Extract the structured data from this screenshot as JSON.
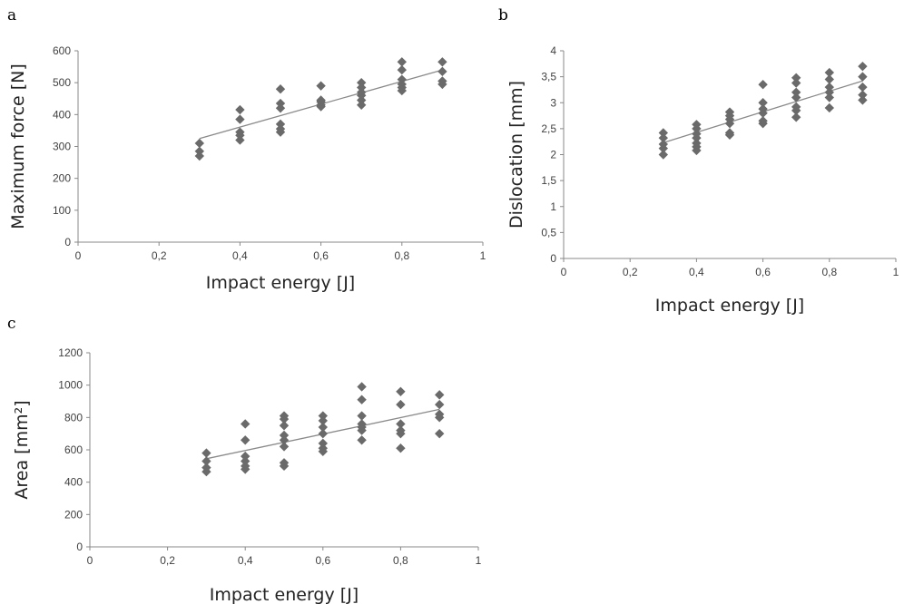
{
  "panels": [
    {
      "label": "a"
    },
    {
      "label": "b"
    },
    {
      "label": "c"
    }
  ],
  "chart_data": [
    {
      "type": "scatter",
      "panel": "a",
      "title": "",
      "xlabel": "Impact energy [J]",
      "ylabel": "Maximum force [N]",
      "xlim": [
        0,
        1
      ],
      "ylim": [
        0,
        600
      ],
      "xticks": [
        "0",
        "0,2",
        "0,4",
        "0,6",
        "0,8",
        "1"
      ],
      "yticks": [
        "0",
        "100",
        "200",
        "300",
        "400",
        "500",
        "600"
      ],
      "grid": false,
      "points": {
        "x": [
          0.3,
          0.3,
          0.3,
          0.4,
          0.4,
          0.4,
          0.4,
          0.4,
          0.5,
          0.5,
          0.5,
          0.5,
          0.5,
          0.5,
          0.6,
          0.6,
          0.6,
          0.6,
          0.6,
          0.7,
          0.7,
          0.7,
          0.7,
          0.7,
          0.7,
          0.8,
          0.8,
          0.8,
          0.8,
          0.8,
          0.8,
          0.9,
          0.9,
          0.9,
          0.9
        ],
        "y": [
          310,
          285,
          270,
          415,
          385,
          345,
          335,
          320,
          480,
          435,
          420,
          370,
          355,
          345,
          490,
          445,
          440,
          430,
          425,
          500,
          485,
          470,
          460,
          445,
          430,
          565,
          540,
          510,
          495,
          485,
          475,
          565,
          535,
          505,
          495
        ]
      },
      "trendline": {
        "x": [
          0.3,
          0.9
        ],
        "y": [
          325,
          540
        ]
      }
    },
    {
      "type": "scatter",
      "panel": "b",
      "title": "",
      "xlabel": "Impact energy [J]",
      "ylabel": "Dislocation [mm]",
      "xlim": [
        0,
        1
      ],
      "ylim": [
        0,
        4
      ],
      "xticks": [
        "0",
        "0,2",
        "0,4",
        "0,6",
        "0,8",
        "1"
      ],
      "yticks": [
        "0",
        "0,5",
        "1",
        "1,5",
        "2",
        "2,5",
        "3",
        "3,5",
        "4"
      ],
      "grid": false,
      "points": {
        "x": [
          0.3,
          0.3,
          0.3,
          0.3,
          0.3,
          0.4,
          0.4,
          0.4,
          0.4,
          0.4,
          0.4,
          0.4,
          0.5,
          0.5,
          0.5,
          0.5,
          0.5,
          0.5,
          0.6,
          0.6,
          0.6,
          0.6,
          0.6,
          0.6,
          0.7,
          0.7,
          0.7,
          0.7,
          0.7,
          0.7,
          0.7,
          0.8,
          0.8,
          0.8,
          0.8,
          0.8,
          0.8,
          0.9,
          0.9,
          0.9,
          0.9,
          0.9
        ],
        "y": [
          2.42,
          2.32,
          2.2,
          2.12,
          2.0,
          2.58,
          2.5,
          2.4,
          2.32,
          2.22,
          2.15,
          2.08,
          2.82,
          2.75,
          2.68,
          2.6,
          2.42,
          2.38,
          3.35,
          3.0,
          2.88,
          2.8,
          2.65,
          2.6,
          3.48,
          3.38,
          3.2,
          3.1,
          2.92,
          2.85,
          2.72,
          3.58,
          3.45,
          3.3,
          3.2,
          3.1,
          2.9,
          3.7,
          3.5,
          3.3,
          3.15,
          3.05
        ]
      },
      "trendline": {
        "x": [
          0.3,
          0.9
        ],
        "y": [
          2.23,
          3.42
        ]
      }
    },
    {
      "type": "scatter",
      "panel": "c",
      "title": "",
      "xlabel": "Impact energy [J]",
      "ylabel": "Area [mm²]",
      "xlim": [
        0,
        1
      ],
      "ylim": [
        0,
        1200
      ],
      "xticks": [
        "0",
        "0,2",
        "0,4",
        "0,6",
        "0,8",
        "1"
      ],
      "yticks": [
        "0",
        "200",
        "400",
        "600",
        "800",
        "1000",
        "1200"
      ],
      "grid": false,
      "points": {
        "x": [
          0.3,
          0.3,
          0.3,
          0.3,
          0.4,
          0.4,
          0.4,
          0.4,
          0.4,
          0.4,
          0.5,
          0.5,
          0.5,
          0.5,
          0.5,
          0.5,
          0.5,
          0.5,
          0.6,
          0.6,
          0.6,
          0.6,
          0.6,
          0.6,
          0.6,
          0.7,
          0.7,
          0.7,
          0.7,
          0.7,
          0.7,
          0.7,
          0.8,
          0.8,
          0.8,
          0.8,
          0.8,
          0.8,
          0.9,
          0.9,
          0.9,
          0.9,
          0.9
        ],
        "y": [
          580,
          530,
          490,
          465,
          760,
          660,
          560,
          530,
          500,
          480,
          810,
          790,
          750,
          690,
          660,
          620,
          520,
          500,
          810,
          780,
          740,
          700,
          640,
          610,
          590,
          990,
          910,
          810,
          760,
          740,
          720,
          660,
          960,
          880,
          760,
          720,
          700,
          610,
          940,
          880,
          820,
          800,
          700
        ]
      },
      "trendline": {
        "x": [
          0.3,
          0.9
        ],
        "y": [
          545,
          850
        ]
      }
    }
  ]
}
